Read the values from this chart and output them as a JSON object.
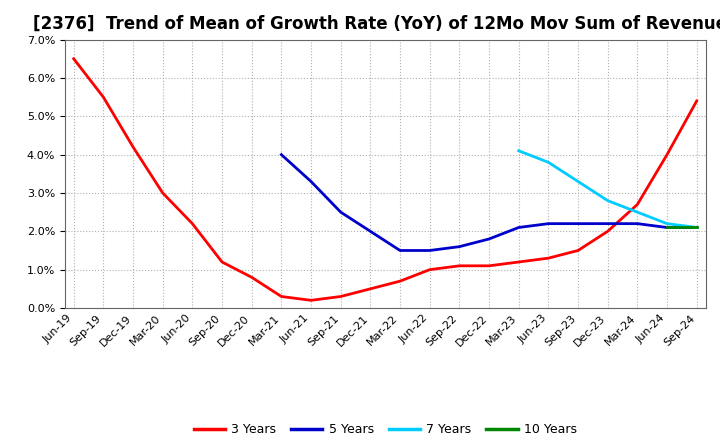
{
  "title": "[2376]  Trend of Mean of Growth Rate (YoY) of 12Mo Mov Sum of Revenues",
  "background_color": "#ffffff",
  "plot_bg_color": "#ffffff",
  "grid_color": "#b0b0b0",
  "ylim": [
    0.0,
    0.07
  ],
  "yticks": [
    0.0,
    0.01,
    0.02,
    0.03,
    0.04,
    0.05,
    0.06,
    0.07
  ],
  "x_labels": [
    "Jun-19",
    "Sep-19",
    "Dec-19",
    "Mar-20",
    "Jun-20",
    "Sep-20",
    "Dec-20",
    "Mar-21",
    "Jun-21",
    "Sep-21",
    "Dec-21",
    "Mar-22",
    "Jun-22",
    "Sep-22",
    "Dec-22",
    "Mar-23",
    "Jun-23",
    "Sep-23",
    "Dec-23",
    "Mar-24",
    "Jun-24",
    "Sep-24"
  ],
  "series_3yr": {
    "label": "3 Years",
    "color": "#ff0000",
    "x": [
      0,
      1,
      2,
      3,
      4,
      5,
      6,
      7,
      8,
      9,
      10,
      11,
      12,
      13,
      14,
      15,
      16,
      17,
      18,
      19,
      20,
      21
    ],
    "y": [
      0.065,
      0.055,
      0.042,
      0.03,
      0.022,
      0.012,
      0.008,
      0.003,
      0.002,
      0.003,
      0.005,
      0.007,
      0.01,
      0.011,
      0.011,
      0.012,
      0.013,
      0.015,
      0.02,
      0.027,
      0.04,
      0.054
    ]
  },
  "series_5yr": {
    "label": "5 Years",
    "color": "#0000cc",
    "x": [
      7,
      8,
      9,
      10,
      11,
      12,
      13,
      14,
      15,
      16,
      17,
      18,
      19,
      20,
      21
    ],
    "y": [
      0.04,
      0.033,
      0.025,
      0.02,
      0.015,
      0.015,
      0.016,
      0.018,
      0.021,
      0.022,
      0.022,
      0.022,
      0.022,
      0.021,
      0.021
    ]
  },
  "series_7yr": {
    "label": "7 Years",
    "color": "#00ccff",
    "x": [
      15,
      16,
      17,
      18,
      19,
      20,
      21
    ],
    "y": [
      0.041,
      0.038,
      0.033,
      0.028,
      0.025,
      0.022,
      0.021
    ]
  },
  "series_10yr": {
    "label": "10 Years",
    "color": "#008800",
    "x": [
      20,
      21
    ],
    "y": [
      0.021,
      0.021
    ]
  },
  "title_fontsize": 12,
  "legend_fontsize": 9,
  "tick_fontsize": 8,
  "linewidth": 2.0
}
